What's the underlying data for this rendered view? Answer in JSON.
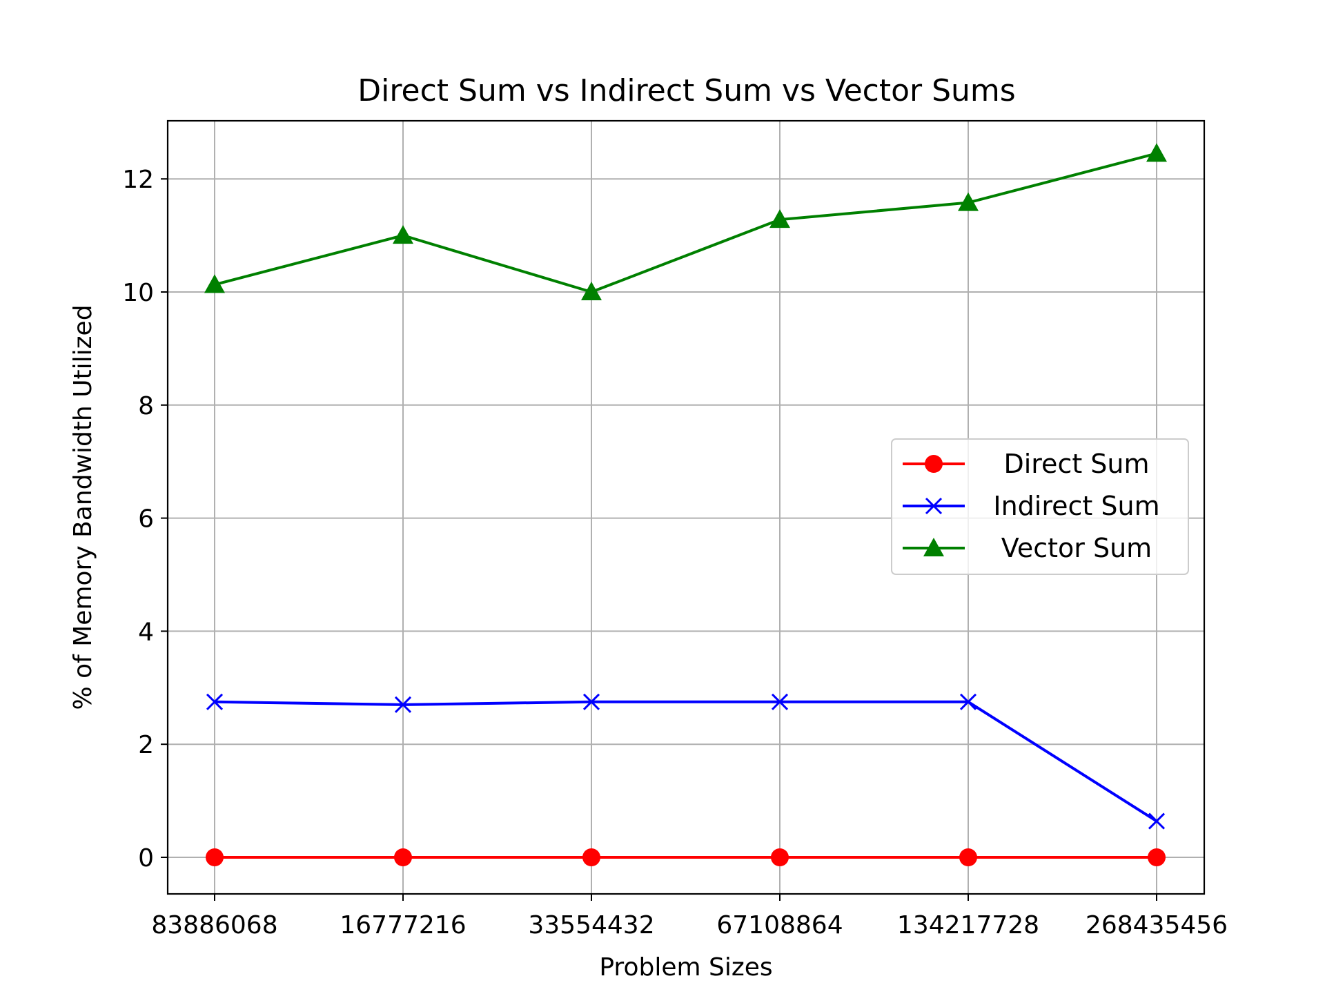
{
  "chart_data": {
    "type": "line",
    "title": "Direct Sum vs Indirect Sum vs Vector Sums",
    "xlabel": "Problem Sizes",
    "ylabel": "% of Memory Bandwidth Utilized",
    "categories": [
      "83886068",
      "16777216",
      "33554432",
      "67108864",
      "134217728",
      "268435456"
    ],
    "ylim": [
      -0.6,
      13.1
    ],
    "yticks": [
      0,
      2,
      4,
      6,
      8,
      10,
      12
    ],
    "grid": true,
    "legend_position": "center-right",
    "series": [
      {
        "name": "Direct Sum",
        "color": "#ff0000",
        "marker": "circle",
        "values": [
          0.0,
          0.0,
          0.0,
          0.0,
          0.0,
          0.0
        ]
      },
      {
        "name": "Indirect Sum",
        "color": "#0000ff",
        "marker": "x",
        "values": [
          2.75,
          2.7,
          2.75,
          2.75,
          2.75,
          0.64
        ]
      },
      {
        "name": "Vector Sum",
        "color": "#008000",
        "marker": "triangle",
        "values": [
          10.13,
          11.0,
          10.0,
          11.28,
          11.58,
          12.45
        ]
      }
    ]
  }
}
